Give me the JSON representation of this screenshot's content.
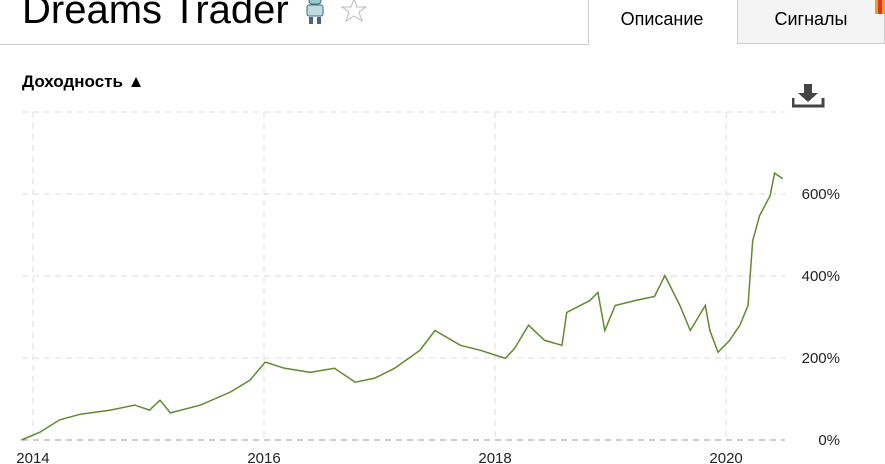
{
  "header": {
    "title": "Dreams Trader",
    "tabs": [
      "Описание",
      "Сигналы"
    ]
  },
  "section_title": "Доходность ▲",
  "chart_data": {
    "type": "line",
    "x": [
      2013.9,
      2014.06,
      2014.23,
      2014.41,
      2014.67,
      2014.88,
      2015.01,
      2015.1,
      2015.19,
      2015.45,
      2015.71,
      2015.88,
      2016.01,
      2016.18,
      2016.4,
      2016.61,
      2016.79,
      2016.96,
      2017.13,
      2017.35,
      2017.48,
      2017.7,
      2017.87,
      2018.09,
      2018.17,
      2018.29,
      2018.43,
      2018.58,
      2018.62,
      2018.82,
      2018.89,
      2018.95,
      2019.04,
      2019.21,
      2019.38,
      2019.47,
      2019.6,
      2019.69,
      2019.82,
      2019.86,
      2019.93,
      2020.03,
      2020.12,
      2020.19,
      2020.23,
      2020.29,
      2020.38,
      2020.42,
      2020.49
    ],
    "values": [
      0,
      19,
      49,
      63,
      73,
      85,
      73,
      97,
      66,
      85,
      117,
      146,
      190,
      175,
      165,
      175,
      141,
      151,
      175,
      219,
      267,
      231,
      219,
      199,
      224,
      280,
      243,
      231,
      311,
      340,
      360,
      267,
      328,
      340,
      350,
      401,
      328,
      267,
      328,
      267,
      214,
      243,
      280,
      328,
      486,
      547,
      595,
      651,
      637
    ],
    "color": "#5f8a2e",
    "xlim": [
      2013.905,
      2020.51
    ],
    "xticks": [
      2014,
      2016,
      2018,
      2020
    ],
    "ylim": [
      0,
      800
    ],
    "yticks": [
      {
        "value": 0,
        "label": "0%"
      },
      {
        "value": 200,
        "label": "200%"
      },
      {
        "value": 400,
        "label": "400%"
      },
      {
        "value": 600,
        "label": "600%"
      }
    ],
    "grid": true
  }
}
